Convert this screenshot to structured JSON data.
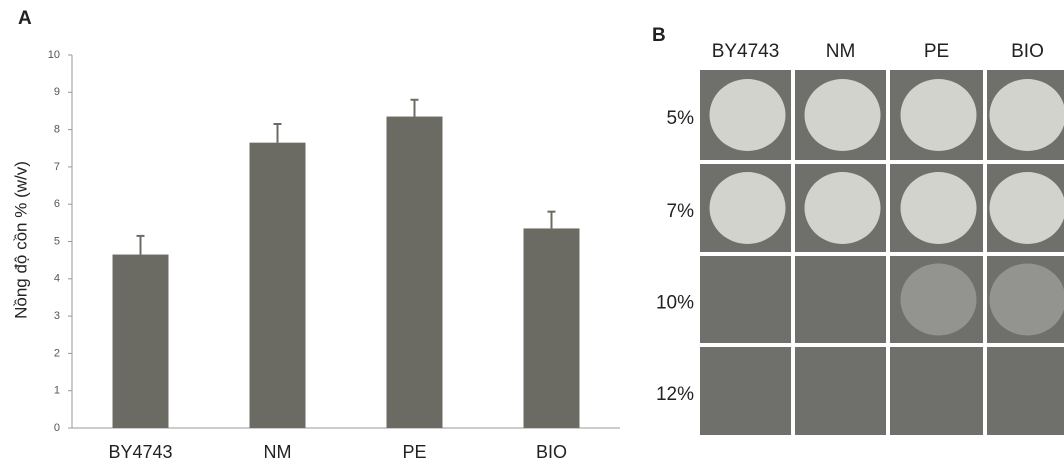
{
  "chart_data": {
    "type": "bar",
    "panel_label": "A",
    "ylabel": "Nồng độ cồn % (w/v)",
    "categories": [
      "BY4743",
      "NM",
      "PE",
      "BIO"
    ],
    "values": [
      4.65,
      7.65,
      8.35,
      5.35
    ],
    "errors": [
      0.5,
      0.5,
      0.45,
      0.45
    ],
    "color": "#6b6b63",
    "ylim": [
      0,
      10
    ],
    "yticks": [
      0,
      1,
      2,
      3,
      4,
      5,
      6,
      7,
      8,
      9,
      10
    ],
    "grid": false
  },
  "panel_b": {
    "panel_label": "B",
    "columns": [
      "BY4743",
      "NM",
      "PE",
      "BIO"
    ],
    "rows": [
      "5%",
      "7%",
      "10%",
      "12%"
    ]
  }
}
